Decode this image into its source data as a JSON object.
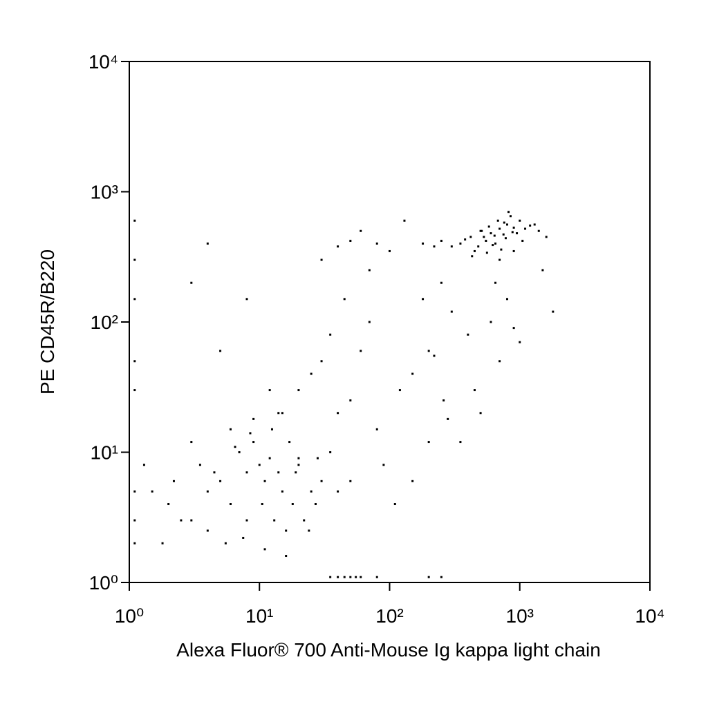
{
  "chart_data": {
    "type": "scatter",
    "x_label": "Alexa Fluor® 700 Anti-Mouse Ig kappa light chain",
    "y_label": "PE CD45R/B220",
    "x_scale": "log",
    "y_scale": "log",
    "color": "#000000",
    "xlim": [
      1,
      10000
    ],
    "ylim": [
      1,
      10000
    ],
    "xticks": [
      {
        "value": 1,
        "label": "10⁰"
      },
      {
        "value": 10,
        "label": "10¹"
      },
      {
        "value": 100,
        "label": "10²"
      },
      {
        "value": 1000,
        "label": "10³"
      },
      {
        "value": 10000,
        "label": "10⁴"
      }
    ],
    "yticks": [
      {
        "value": 1,
        "label": "10⁰"
      },
      {
        "value": 10,
        "label": "10¹"
      },
      {
        "value": 100,
        "label": "10²"
      },
      {
        "value": 1000,
        "label": "10³"
      },
      {
        "value": 10000,
        "label": "10⁴"
      }
    ],
    "x": [
      420,
      510,
      600,
      700,
      800,
      900,
      650,
      750,
      550,
      480,
      380,
      1000,
      1200,
      850,
      720,
      620,
      530,
      450,
      350,
      300,
      950,
      1100,
      1400,
      680,
      780,
      580,
      900,
      1600,
      250,
      220,
      430,
      820,
      700,
      500,
      640,
      1050,
      760,
      560,
      880,
      1300,
      250,
      180,
      300,
      400,
      600,
      800,
      200,
      150,
      120,
      700,
      1500,
      1800,
      1000,
      500,
      350,
      260,
      220,
      280,
      450,
      900,
      650,
      180,
      100,
      80,
      60,
      50,
      40,
      30,
      70,
      130,
      5,
      8,
      10,
      12,
      15,
      6,
      4,
      3,
      7,
      9,
      11,
      14,
      18,
      20,
      25,
      30,
      2,
      2.5,
      3.5,
      4.5,
      6.5,
      8.5,
      13,
      16,
      22,
      28,
      35,
      1.5,
      1.8,
      2.2,
      5.5,
      7.5,
      10.5,
      12.5,
      17,
      19,
      24,
      40,
      50,
      3,
      6,
      9,
      14,
      20,
      4,
      8,
      11,
      16,
      27,
      1.3,
      20,
      25,
      30,
      40,
      50,
      60,
      80,
      15,
      12,
      35,
      45,
      70,
      90,
      110,
      150,
      5,
      8,
      3,
      4,
      200,
      35,
      40,
      45,
      50,
      55,
      60,
      80,
      200,
      250,
      1.1,
      1.1,
      1.1,
      1.1,
      1.1,
      1.1,
      1.1,
      1.1
    ],
    "y": [
      450,
      500,
      480,
      520,
      560,
      530,
      400,
      470,
      420,
      380,
      430,
      600,
      550,
      650,
      360,
      390,
      450,
      350,
      400,
      380,
      480,
      520,
      500,
      600,
      440,
      540,
      350,
      450,
      420,
      380,
      320,
      700,
      300,
      500,
      460,
      420,
      580,
      340,
      490,
      560,
      200,
      150,
      120,
      80,
      100,
      150,
      60,
      40,
      30,
      50,
      250,
      120,
      70,
      20,
      12,
      25,
      55,
      18,
      30,
      90,
      200,
      400,
      350,
      400,
      500,
      420,
      380,
      300,
      250,
      600,
      6,
      7,
      8,
      9,
      5,
      4,
      5,
      3,
      10,
      12,
      6,
      7,
      4,
      8,
      5,
      6,
      4,
      3,
      8,
      7,
      11,
      14,
      3,
      2.5,
      3,
      9,
      10,
      5,
      2,
      6,
      2,
      2.2,
      4,
      15,
      12,
      7,
      2.5,
      5,
      6,
      12,
      15,
      18,
      20,
      9,
      2.5,
      3,
      1.8,
      1.6,
      4,
      8,
      30,
      40,
      50,
      20,
      25,
      60,
      15,
      20,
      30,
      80,
      150,
      100,
      8,
      4,
      6,
      60,
      150,
      200,
      400,
      12,
      1.1,
      1.1,
      1.1,
      1.1,
      1.1,
      1.1,
      1.1,
      1.1,
      1.1,
      600,
      300,
      150,
      50,
      30,
      5,
      3,
      2
    ]
  }
}
